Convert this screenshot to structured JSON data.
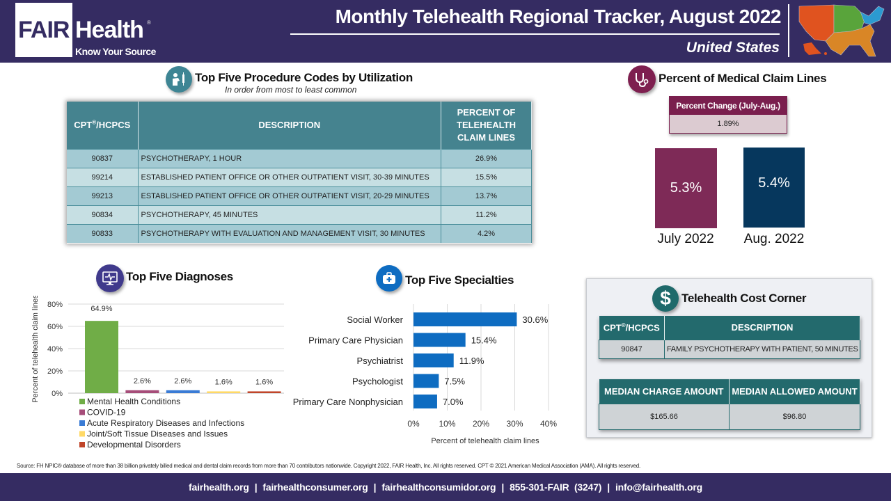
{
  "header": {
    "logo_fair": "FAIR",
    "logo_health": "Health",
    "logo_reg": "®",
    "logo_tagline": "Know Your Source",
    "title": "Monthly Telehealth Regional Tracker, August 2022",
    "region": "United States",
    "map_colors": {
      "west": "#e0531f",
      "midwest": "#59a43b",
      "northeast": "#2c9ad1",
      "south": "#d98626"
    }
  },
  "procedures": {
    "title": "Top Five Procedure Codes by Utilization",
    "subtitle": "In order from most to least common",
    "icon": "doctor-vaccine-icon",
    "columns": [
      "CPT",
      "®",
      "/HCPCS",
      "DESCRIPTION",
      "PERCENT OF TELEHEALTH CLAIM LINES"
    ],
    "rows": [
      {
        "code": "90837",
        "description": "PSYCHOTHERAPY, 1 HOUR",
        "percent": "26.9%"
      },
      {
        "code": "99214",
        "description": "ESTABLISHED PATIENT OFFICE OR OTHER OUTPATIENT VISIT, 30-39 MINUTES",
        "percent": "15.5%"
      },
      {
        "code": "99213",
        "description": "ESTABLISHED PATIENT OFFICE OR OTHER OUTPATIENT VISIT, 20-29 MINUTES",
        "percent": "13.7%"
      },
      {
        "code": "90834",
        "description": "PSYCHOTHERAPY, 45 MINUTES",
        "percent": "11.2%"
      },
      {
        "code": "90833",
        "description": "PSYCHOTHERAPY WITH EVALUATION AND MANAGEMENT VISIT, 30 MINUTES",
        "percent": "4.2%"
      }
    ]
  },
  "medical_claims": {
    "title": "Percent of Medical Claim Lines",
    "icon": "stethoscope-icon",
    "change_label": "Percent Change (July-Aug.)",
    "change_value": "1.89%",
    "months": [
      {
        "label": "July 2022",
        "value_text": "5.3%",
        "value": 5.3,
        "color": "#7e2a57"
      },
      {
        "label": "Aug. 2022",
        "value_text": "5.4%",
        "value": 5.4,
        "color": "#06375d"
      }
    ]
  },
  "diagnoses_title": "Top Five Diagnoses",
  "diagnoses_icon": "monitor-heartbeat-icon",
  "specialties_title": "Top Five Specialties",
  "specialties_icon": "medical-kit-icon",
  "chart_data": [
    {
      "type": "bar",
      "title": "Top Five Diagnoses",
      "xlabel": "",
      "ylabel": "Percent of telehealth claim lines",
      "ylim": [
        0,
        80
      ],
      "yticks": [
        0,
        20,
        40,
        60,
        80
      ],
      "ytick_labels": [
        "0%",
        "20%",
        "40%",
        "60%",
        "80%"
      ],
      "grid": true,
      "legend_position": "bottom",
      "categories": [
        "Mental Health Conditions",
        "COVID-19",
        "Acute Respiratory Diseases and Infections",
        "Joint/Soft Tissue Diseases and Issues",
        "Developmental Disorders"
      ],
      "values": [
        64.9,
        2.6,
        2.6,
        1.6,
        1.6
      ],
      "data_labels": [
        "64.9%",
        "2.6%",
        "2.6%",
        "1.6%",
        "1.6%"
      ],
      "colors": [
        "#70ad47",
        "#a64d79",
        "#3a7bd5",
        "#ffd966",
        "#c0452a"
      ]
    },
    {
      "type": "bar",
      "orientation": "horizontal",
      "title": "Top Five Specialties",
      "xlabel": "Percent of telehealth claim lines",
      "ylabel": "",
      "xlim": [
        0,
        40
      ],
      "xticks": [
        0,
        10,
        20,
        30,
        40
      ],
      "xtick_labels": [
        "0%",
        "10%",
        "20%",
        "30%",
        "40%"
      ],
      "grid": true,
      "categories": [
        "Social Worker",
        "Primary Care Physician",
        "Psychiatrist",
        "Psychologist",
        "Primary Care Nonphysician"
      ],
      "values": [
        30.6,
        15.4,
        11.9,
        7.5,
        7.0
      ],
      "data_labels": [
        "30.6%",
        "15.4%",
        "11.9%",
        "7.5%",
        "7.0%"
      ],
      "color": "#0e6cc1"
    }
  ],
  "cost_corner": {
    "title": "Telehealth Cost Corner",
    "icon": "dollar-icon",
    "code_header_main": "CPT",
    "code_header_sup": "®",
    "code_header_tail": "/HCPCS",
    "desc_header": "DESCRIPTION",
    "code": "90847",
    "description": "FAMILY PSYCHOTHERAPY WITH PATIENT, 50 MINUTES",
    "median_charge_header": "MEDIAN CHARGE AMOUNT",
    "median_allowed_header": "MEDIAN ALLOWED AMOUNT",
    "median_charge": "$165.66",
    "median_allowed": "$96.80"
  },
  "source": "Source: FH NPIC® database of more than 38 billion privately billed medical and dental claim records from more than 70 contributors nationwide. Copyright 2022, FAIR Health, Inc. All rights reserved. CPT © 2021 American Medical Association (AMA). All rights reserved.",
  "footer": {
    "links": [
      "fairhealth.org",
      "fairhealthconsumer.org",
      "fairhealthconsumidor.org",
      "855-301-FAIR  (3247)",
      "info@fairhealth.org"
    ],
    "separator": "|"
  }
}
